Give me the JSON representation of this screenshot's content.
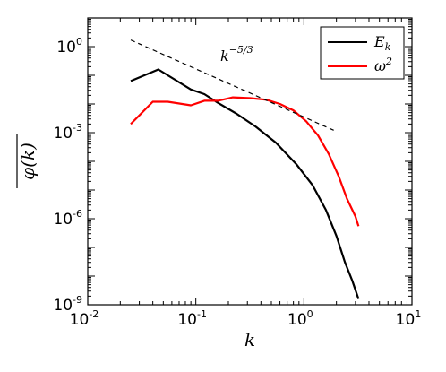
{
  "chart_data": {
    "type": "line",
    "xscale": "log",
    "yscale": "log",
    "xlim": [
      0.01,
      10
    ],
    "ylim": [
      1e-09,
      10
    ],
    "xlabel": "k",
    "ylabel": "φ(k)",
    "x_ticks": [
      {
        "base": "10",
        "exp": "-2",
        "value": 0.01
      },
      {
        "base": "10",
        "exp": "-1",
        "value": 0.1
      },
      {
        "base": "10",
        "exp": "0",
        "value": 1
      },
      {
        "base": "10",
        "exp": "1",
        "value": 10
      }
    ],
    "y_ticks": [
      {
        "base": "10",
        "exp": "0",
        "value": 1
      },
      {
        "base": "10",
        "exp": "-3",
        "value": 0.001
      },
      {
        "base": "10",
        "exp": "-6",
        "value": 1e-06
      },
      {
        "base": "10",
        "exp": "-9",
        "value": 1e-09
      }
    ],
    "grid": false,
    "legend": "top-right",
    "series": [
      {
        "name": "E_k",
        "legend_base": "E",
        "legend_sub": "k",
        "color": "#000000",
        "x": [
          0.025,
          0.045,
          0.09,
          0.12,
          0.16,
          0.24,
          0.36,
          0.55,
          0.85,
          1.2,
          1.6,
          2.0,
          2.4,
          2.8,
          3.2
        ],
        "y": [
          0.063,
          0.16,
          0.032,
          0.022,
          0.011,
          0.0045,
          0.0016,
          0.00045,
          8e-05,
          1.5e-05,
          2e-06,
          2.5e-07,
          3e-08,
          7e-09,
          1.6e-09
        ]
      },
      {
        "name": "ω^2",
        "legend_base": "ω",
        "legend_sup": "2",
        "color": "#ff0000",
        "x": [
          0.025,
          0.04,
          0.055,
          0.09,
          0.12,
          0.16,
          0.22,
          0.32,
          0.45,
          0.6,
          0.8,
          1.05,
          1.35,
          1.7,
          2.1,
          2.5,
          3.0,
          3.2
        ],
        "y": [
          0.002,
          0.012,
          0.012,
          0.009,
          0.013,
          0.013,
          0.017,
          0.016,
          0.014,
          0.01,
          0.006,
          0.0025,
          0.0008,
          0.00018,
          3e-05,
          5e-06,
          1.2e-06,
          5.5e-07
        ]
      }
    ],
    "reference_line": {
      "label_base": "k",
      "label_exp": "−5/3",
      "color": "#000000",
      "style": "dashed",
      "x": [
        0.025,
        2.0
      ],
      "y": [
        1.7,
        0.0011
      ]
    }
  }
}
